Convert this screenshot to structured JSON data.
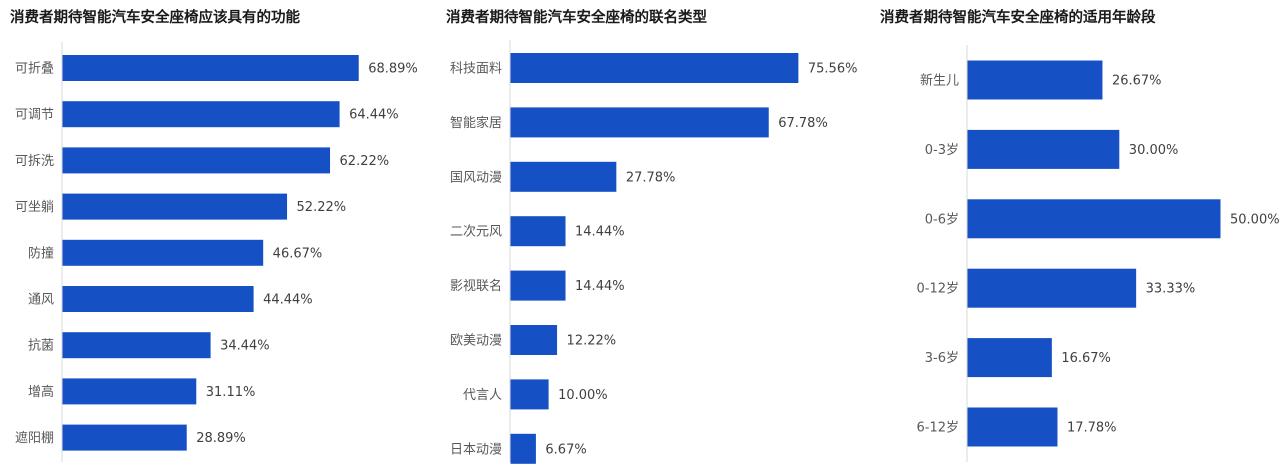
{
  "chart_data": [
    {
      "type": "bar",
      "orientation": "horizontal",
      "title": "消费者期待智能汽车安全座椅应该具有的功能",
      "categories": [
        "可折叠",
        "可调节",
        "可拆洗",
        "可坐躺",
        "防撞",
        "通风",
        "抗菌",
        "增高",
        "遮阳棚"
      ],
      "values": [
        68.89,
        64.44,
        62.22,
        52.22,
        46.67,
        44.44,
        34.44,
        31.11,
        28.89
      ],
      "value_labels": [
        "68.89%",
        "64.44%",
        "62.22%",
        "52.22%",
        "46.67%",
        "44.44%",
        "34.44%",
        "31.11%",
        "28.89%"
      ],
      "unit": "%",
      "color": "#1551C4",
      "grid": false
    },
    {
      "type": "bar",
      "orientation": "horizontal",
      "title": "消费者期待智能汽车安全座椅的联名类型",
      "categories": [
        "科技面料",
        "智能家居",
        "国风动漫",
        "二次元风",
        "影视联名",
        "欧美动漫",
        "代言人",
        "日本动漫"
      ],
      "values": [
        75.56,
        67.78,
        27.78,
        14.44,
        14.44,
        12.22,
        10.0,
        6.67
      ],
      "value_labels": [
        "75.56%",
        "67.78%",
        "27.78%",
        "14.44%",
        "14.44%",
        "12.22%",
        "10.00%",
        "6.67%"
      ],
      "unit": "%",
      "color": "#1551C4",
      "grid": false
    },
    {
      "type": "bar",
      "orientation": "horizontal",
      "title": "消费者期待智能汽车安全座椅的适用年龄段",
      "categories": [
        "新生儿",
        "0-3岁",
        "0-6岁",
        "0-12岁",
        "3-6岁",
        "6-12岁"
      ],
      "values": [
        26.67,
        30.0,
        50.0,
        33.33,
        16.67,
        17.78
      ],
      "value_labels": [
        "26.67%",
        "30.00%",
        "50.00%",
        "33.33%",
        "16.67%",
        "17.78%"
      ],
      "unit": "%",
      "color": "#1551C4",
      "grid": false
    }
  ]
}
